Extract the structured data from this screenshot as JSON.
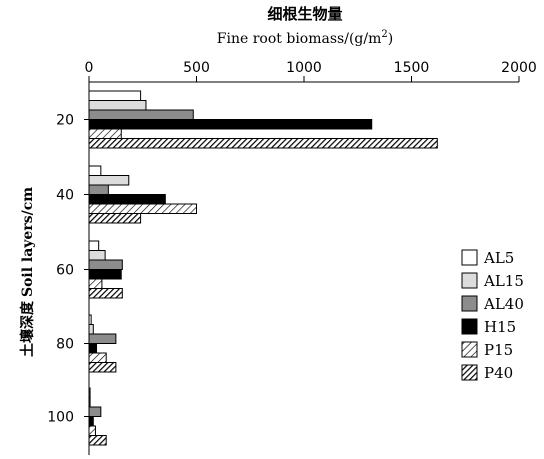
{
  "chart_data": {
    "type": "bar",
    "orientation": "horizontal",
    "title_zh": "细根生物量",
    "xlabel": "Fine root biomass/(g/m",
    "xlabel_sup": "2",
    "xlabel_end": ")",
    "ylabel_zh": "土壤深度",
    "ylabel_en": "Soil layers/cm",
    "x_axis_position": "top",
    "xlim": [
      0,
      2000
    ],
    "xticks": [
      "0",
      "500",
      "1000",
      "1500",
      "2000"
    ],
    "categories": [
      "20",
      "40",
      "60",
      "80",
      "100"
    ],
    "grid": false,
    "legend_position": "right",
    "series": [
      {
        "name": "AL5",
        "fill": "white",
        "values": [
          240,
          55,
          45,
          10,
          5
        ]
      },
      {
        "name": "AL15",
        "fill": "light-gray",
        "values": [
          265,
          185,
          75,
          20,
          5
        ]
      },
      {
        "name": "AL40",
        "fill": "gray",
        "values": [
          485,
          90,
          155,
          125,
          55
        ]
      },
      {
        "name": "H15",
        "fill": "black",
        "values": [
          1315,
          355,
          150,
          35,
          20
        ]
      },
      {
        "name": "P15",
        "fill": "hatch-light",
        "values": [
          150,
          500,
          60,
          80,
          30
        ]
      },
      {
        "name": "P40",
        "fill": "hatch-dark",
        "values": [
          1620,
          240,
          155,
          125,
          80
        ]
      }
    ]
  },
  "colors": {
    "white": "#ffffff",
    "light-gray": "#dcdcdc",
    "gray": "#8c8c8c",
    "black": "#000000",
    "stroke": "#000000"
  }
}
